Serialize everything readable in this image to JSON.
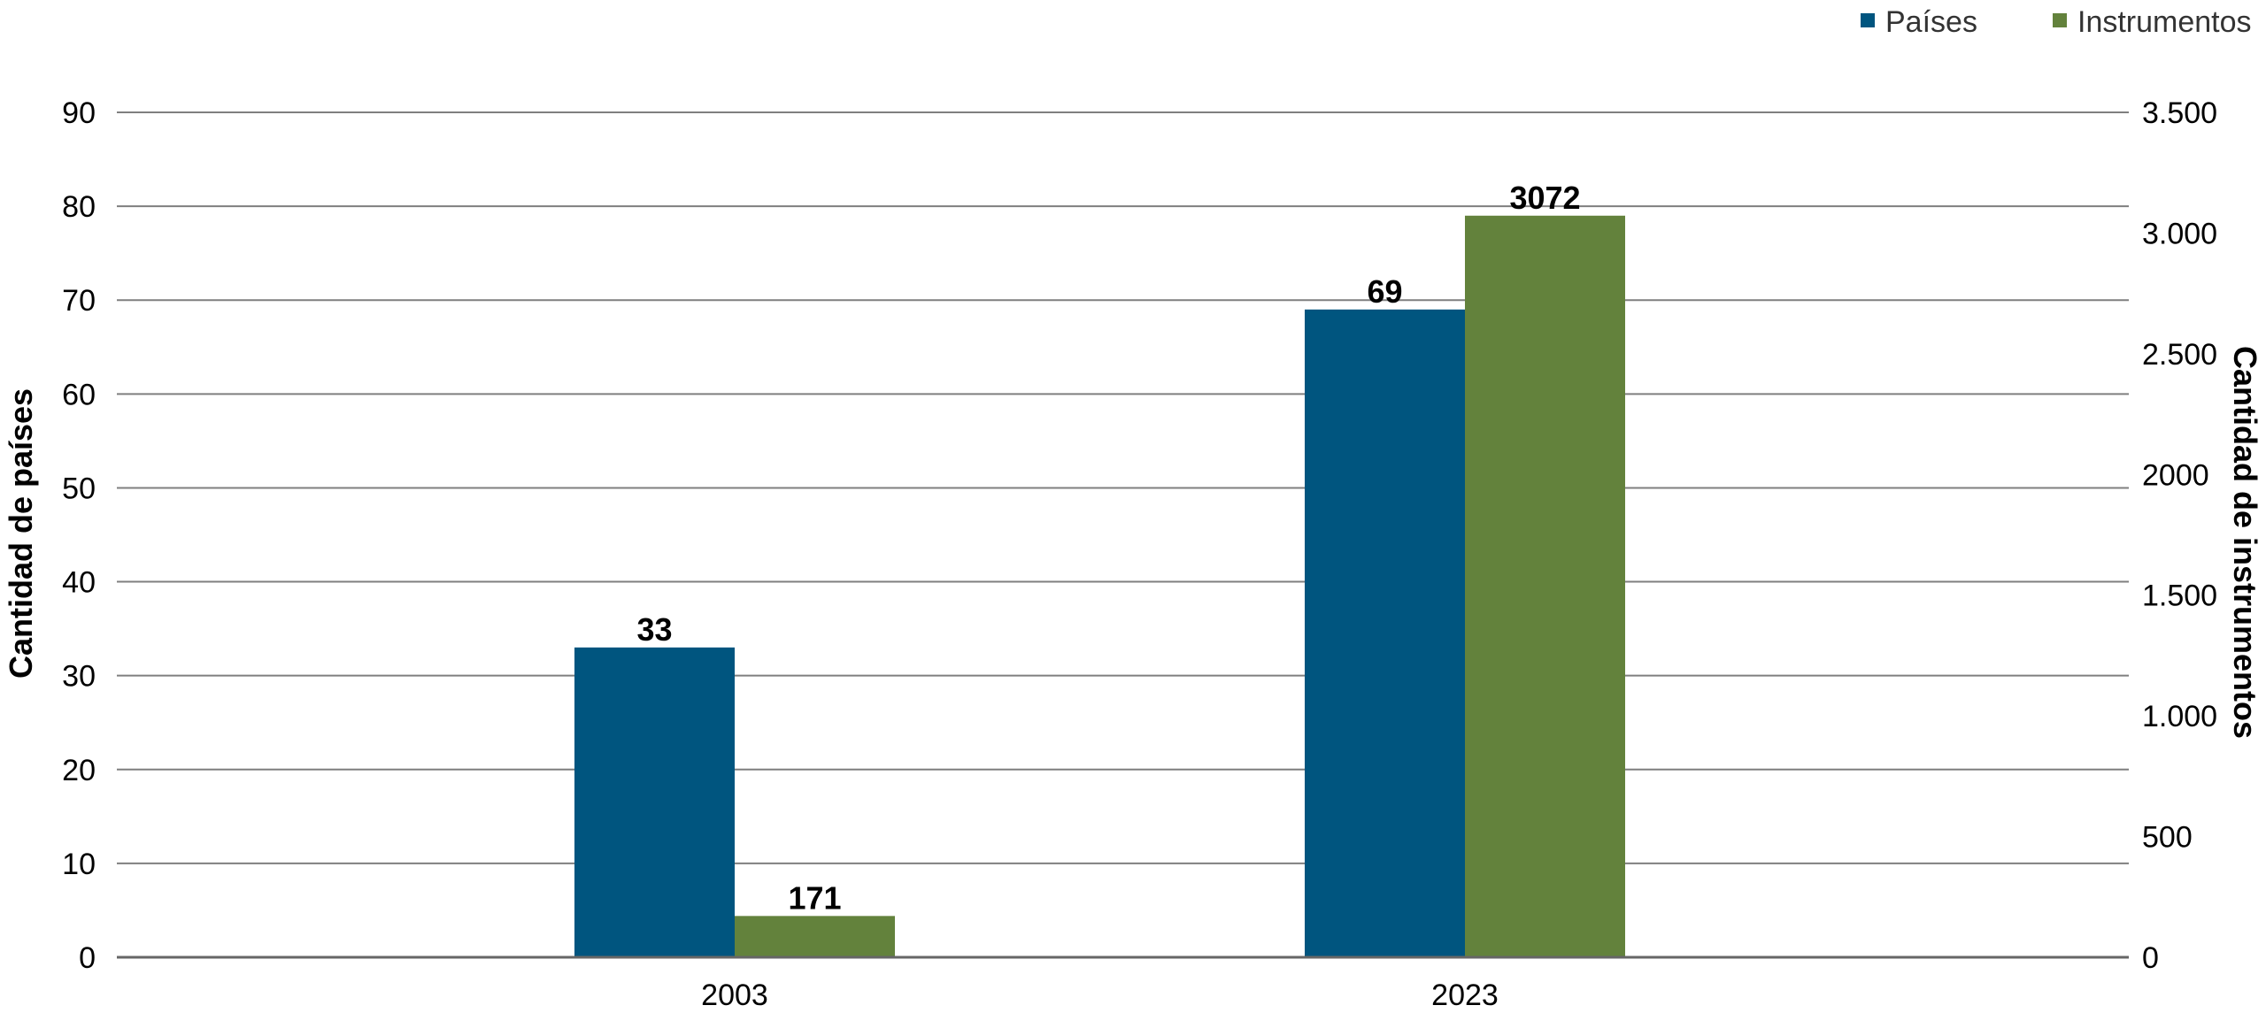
{
  "chart_data": {
    "type": "bar",
    "categories": [
      "2003",
      "2023"
    ],
    "series": [
      {
        "name": "Países",
        "values": [
          33,
          69
        ],
        "axis": "left",
        "color": "#00557f"
      },
      {
        "name": "Instrumentos",
        "values": [
          171,
          3072
        ],
        "axis": "right",
        "color": "#63823c"
      }
    ],
    "data_labels": {
      "Países": [
        "33",
        "69"
      ],
      "Instrumentos": [
        "171",
        "3072"
      ]
    },
    "ylabel_left": "Cantidad de países",
    "ylabel_right": "Cantidad de instrumentos",
    "ylim_left": [
      0,
      90
    ],
    "ylim_right": [
      0,
      3500
    ],
    "left_ticks": [
      {
        "value": 0,
        "label": "0"
      },
      {
        "value": 10,
        "label": "10"
      },
      {
        "value": 20,
        "label": "20"
      },
      {
        "value": 30,
        "label": "30"
      },
      {
        "value": 40,
        "label": "40"
      },
      {
        "value": 50,
        "label": "50"
      },
      {
        "value": 60,
        "label": "60"
      },
      {
        "value": 70,
        "label": "70"
      },
      {
        "value": 80,
        "label": "80"
      },
      {
        "value": 90,
        "label": "90"
      }
    ],
    "right_ticks": [
      {
        "value": 0,
        "label": "0"
      },
      {
        "value": 500,
        "label": "500"
      },
      {
        "value": 1000,
        "label": "1.000"
      },
      {
        "value": 1500,
        "label": "1.500"
      },
      {
        "value": 2000,
        "label": "2000"
      },
      {
        "value": 2500,
        "label": "2.500"
      },
      {
        "value": 3000,
        "label": "3.000"
      },
      {
        "value": 3500,
        "label": "3.500"
      }
    ],
    "grid": true,
    "legend_position": "top-right",
    "axis_line_color": "#666666",
    "grid_color": "#7f7f7f",
    "text_color": "#000000"
  }
}
